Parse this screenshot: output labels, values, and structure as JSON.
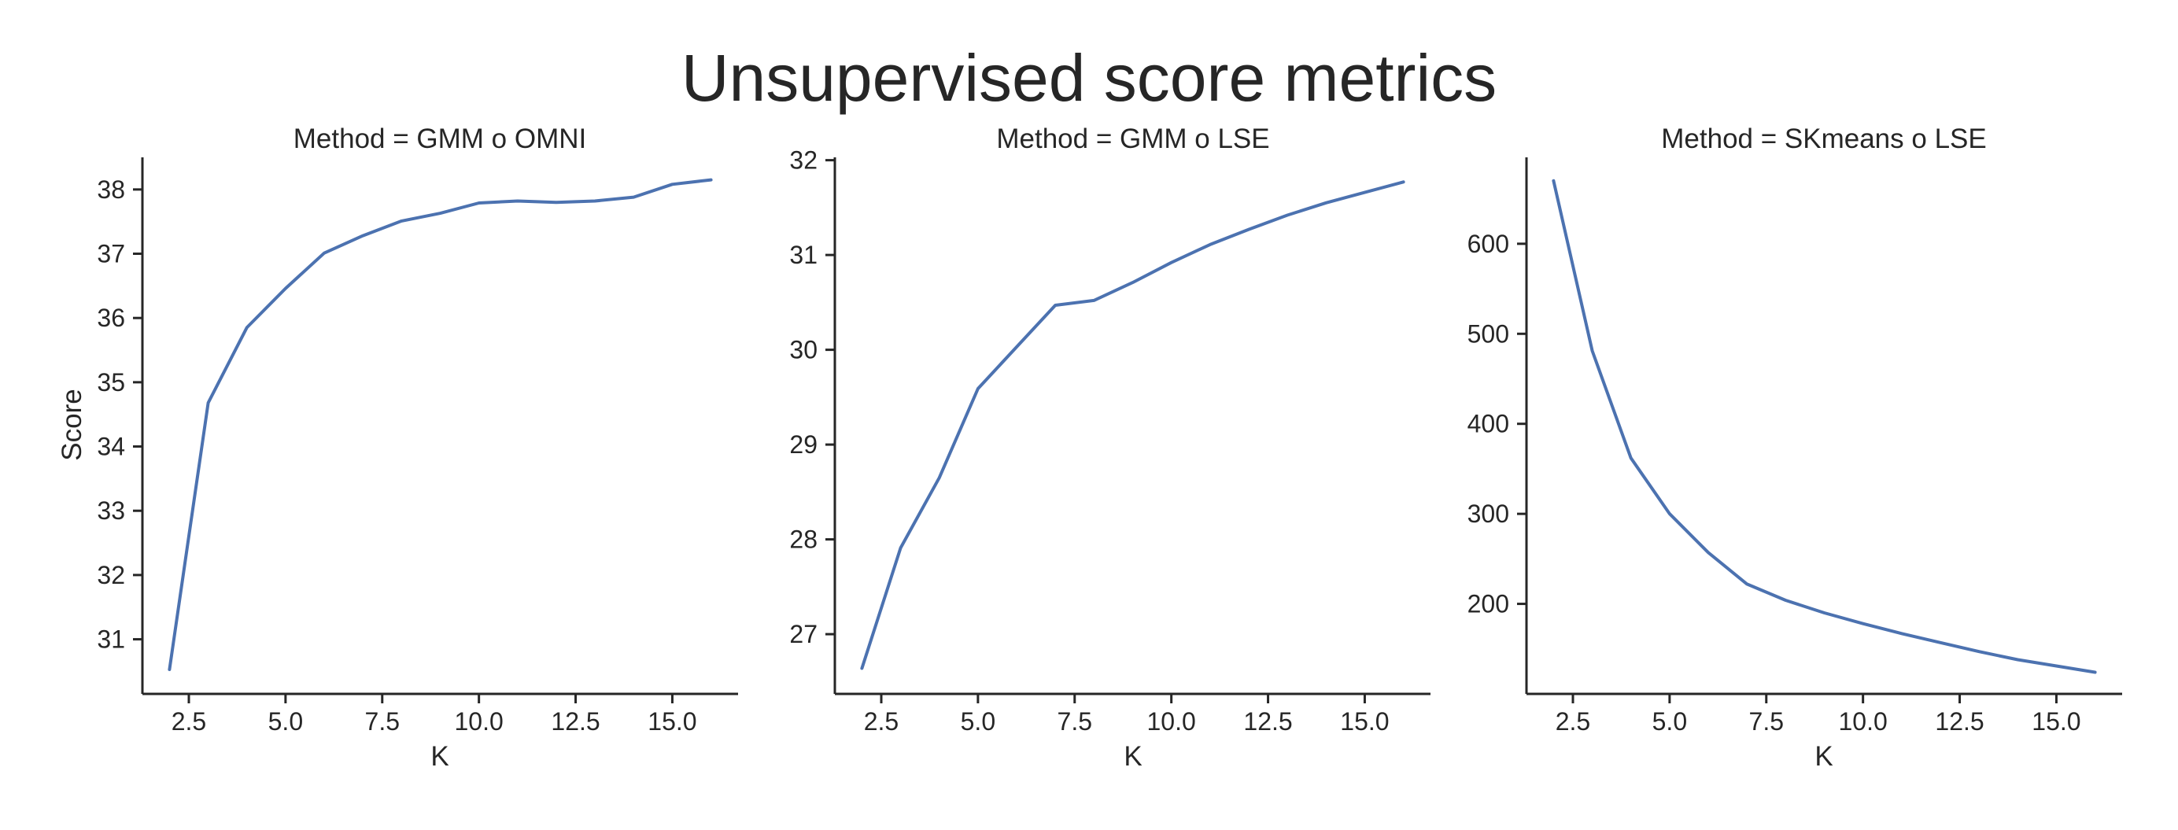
{
  "figure": {
    "title": "Unsupervised score metrics",
    "line_color": "#4c72b0",
    "axis_color": "#262626"
  },
  "chart_data": [
    {
      "type": "line",
      "title": "Method = GMM o OMNI",
      "xlabel": "K",
      "ylabel": "Score",
      "xlim": [
        1.3,
        16.7
      ],
      "ylim": [
        30.15,
        38.5
      ],
      "xticks": [
        2.5,
        5.0,
        7.5,
        10.0,
        12.5,
        15.0
      ],
      "xtick_labels": [
        "2.5",
        "5.0",
        "7.5",
        "10.0",
        "12.5",
        "15.0"
      ],
      "yticks": [
        31,
        32,
        33,
        34,
        35,
        36,
        37,
        38
      ],
      "ytick_labels": [
        "31",
        "32",
        "33",
        "34",
        "35",
        "36",
        "37",
        "38"
      ],
      "x": [
        2,
        3,
        4,
        5,
        6,
        7,
        8,
        9,
        10,
        11,
        12,
        13,
        14,
        15,
        16
      ],
      "y": [
        30.53,
        34.68,
        35.85,
        36.46,
        37.01,
        37.28,
        37.51,
        37.63,
        37.79,
        37.82,
        37.8,
        37.82,
        37.88,
        38.08,
        38.15
      ]
    },
    {
      "type": "line",
      "title": "Method = GMM o LSE",
      "xlabel": "K",
      "ylabel": "",
      "xlim": [
        1.3,
        16.7
      ],
      "ylim": [
        26.37,
        32.03
      ],
      "xticks": [
        2.5,
        5.0,
        7.5,
        10.0,
        12.5,
        15.0
      ],
      "xtick_labels": [
        "2.5",
        "5.0",
        "7.5",
        "10.0",
        "12.5",
        "15.0"
      ],
      "yticks": [
        27,
        28,
        29,
        30,
        31,
        32
      ],
      "ytick_labels": [
        "27",
        "28",
        "29",
        "30",
        "31",
        "32"
      ],
      "x": [
        2,
        3,
        4,
        5,
        6,
        7,
        8,
        9,
        10,
        11,
        12,
        13,
        14,
        15,
        16
      ],
      "y": [
        26.64,
        27.91,
        28.65,
        29.59,
        30.03,
        30.47,
        30.52,
        30.71,
        30.92,
        31.11,
        31.27,
        31.42,
        31.55,
        31.66,
        31.77
      ]
    },
    {
      "type": "line",
      "title": "Method = SKmeans o LSE",
      "xlabel": "K",
      "ylabel": "",
      "xlim": [
        1.3,
        16.7
      ],
      "ylim": [
        100,
        696
      ],
      "xticks": [
        2.5,
        5.0,
        7.5,
        10.0,
        12.5,
        15.0
      ],
      "xtick_labels": [
        "2.5",
        "5.0",
        "7.5",
        "10.0",
        "12.5",
        "15.0"
      ],
      "yticks": [
        200,
        300,
        400,
        500,
        600
      ],
      "ytick_labels": [
        "200",
        "300",
        "400",
        "500",
        "600"
      ],
      "x": [
        2,
        3,
        4,
        5,
        6,
        7,
        8,
        9,
        10,
        11,
        12,
        13,
        14,
        15,
        16
      ],
      "y": [
        670,
        481,
        362,
        300,
        257,
        222,
        204,
        190,
        178,
        167,
        157,
        147,
        138,
        131,
        124
      ]
    }
  ]
}
